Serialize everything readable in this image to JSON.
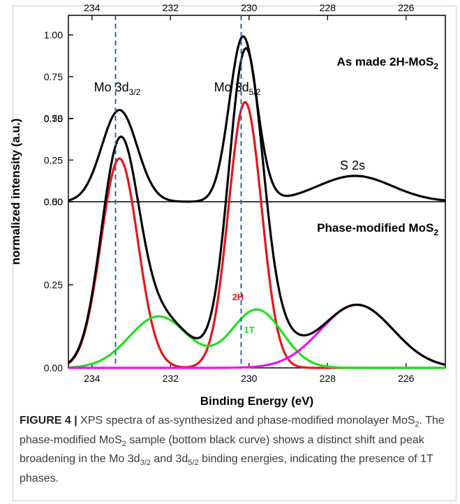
{
  "chart_data": {
    "type": "line",
    "xlabel": "Binding Energy (eV)",
    "ylabel": "normalized intensity (a.u.)",
    "xlim": [
      234.6,
      225.0
    ],
    "x_reversed": true,
    "x_ticks": [
      "234",
      "232",
      "230",
      "228",
      "226"
    ],
    "x_tick_values": [
      234,
      232,
      230,
      228,
      226
    ],
    "panels": [
      {
        "name": "top",
        "label": "As made 2H-MoS",
        "label_sub": "2",
        "ylim": [
          0,
          1.0
        ],
        "y_ticks": [
          "0.00",
          "0.25",
          "0.50",
          "0.75",
          "1.00"
        ],
        "y_tick_values": [
          0,
          0.25,
          0.5,
          0.75,
          1.0
        ],
        "annotations": [
          {
            "text": "Mo 3d",
            "sub": "3/2",
            "x": 233.3
          },
          {
            "text": "Mo 3d",
            "sub": "5/2",
            "x": 230.2
          },
          {
            "text": "S 2s",
            "x": 227.3
          }
        ],
        "series": [
          {
            "color": "#000000",
            "peaks": [
              [
                233.3,
                0.55,
                0.45
              ],
              [
                230.15,
                0.99,
                0.35
              ],
              [
                227.3,
                0.155,
                0.95
              ]
            ],
            "baseline": 0.0
          }
        ]
      },
      {
        "name": "bottom",
        "label": "Phase-modified MoS",
        "label_sub": "2",
        "ylim": [
          0,
          1.0
        ],
        "y_ticks": [
          "0.00",
          "0.25",
          "0.50",
          "0.75"
        ],
        "y_tick_values": [
          0,
          0.25,
          0.5,
          0.75
        ],
        "series": [
          {
            "name": "2H",
            "color": "#e8141a",
            "peaks": [
              [
                233.3,
                0.63,
                0.47
              ],
              [
                230.1,
                0.8,
                0.42
              ]
            ]
          },
          {
            "name": "1T",
            "color": "#22dd22",
            "peaks": [
              [
                232.3,
                0.155,
                0.75
              ],
              [
                229.8,
                0.175,
                0.65
              ]
            ]
          },
          {
            "color": "#ee11ee",
            "peaks": [
              [
                227.25,
                0.19,
                0.92
              ]
            ]
          },
          {
            "color": "#000000",
            "sum": true
          }
        ]
      }
    ],
    "reference_lines": [
      233.4,
      230.2
    ],
    "reference_line_color": "#2a64b0"
  },
  "caption": {
    "label": "FIGURE 4 |",
    "t1": " XPS spectra of as-synthesized and phase-modified monolayer MoS",
    "s1": "2",
    "t2": ". The phase-modified MoS",
    "s2": "2",
    "t3": " sample (bottom black curve) shows a distinct shift and peak broadening in the Mo 3d",
    "s3": "3/2",
    "t4": " and 3d",
    "s4": "5/2",
    "t5": " binding energies, indicating the presence of 1T phases."
  }
}
